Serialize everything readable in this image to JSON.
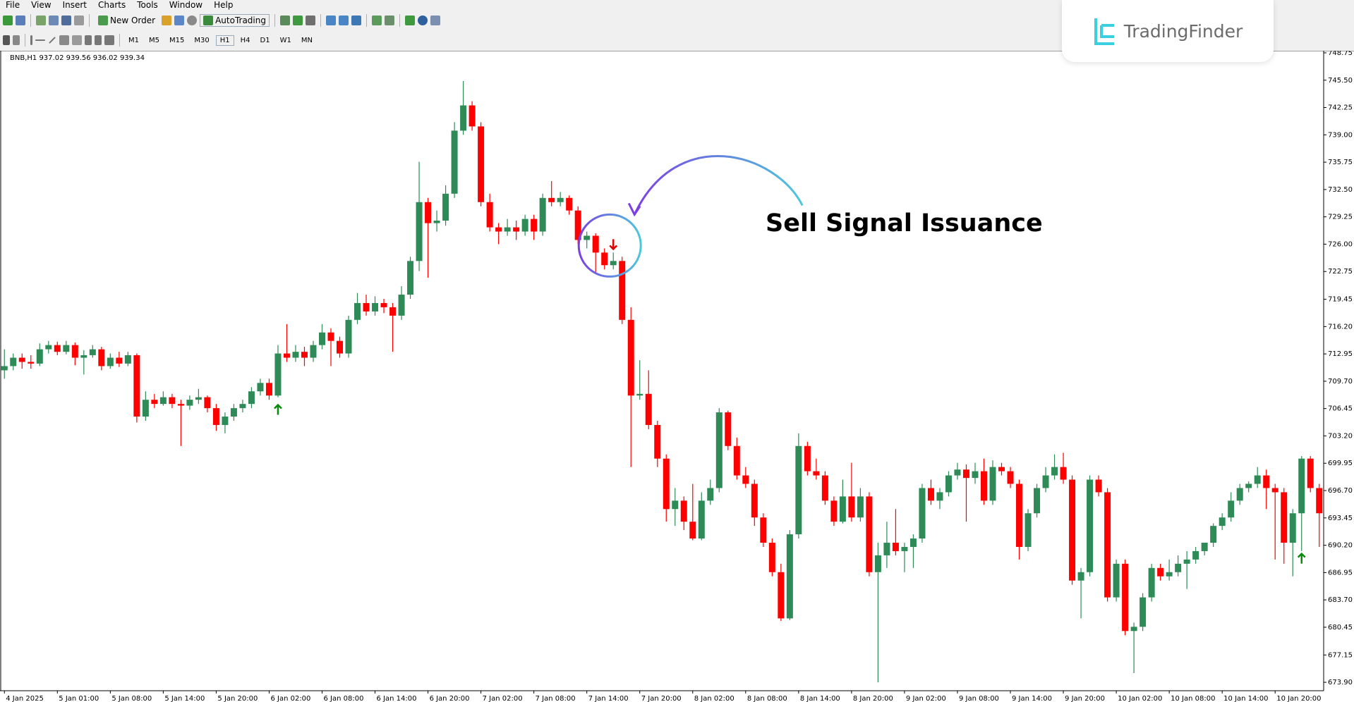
{
  "menu": [
    "File",
    "View",
    "Insert",
    "Charts",
    "Tools",
    "Window",
    "Help"
  ],
  "toolbar": {
    "new_order": "New Order",
    "autotrading": "AutoTrading",
    "timeframes": [
      "M1",
      "M5",
      "M15",
      "M30",
      "H1",
      "H4",
      "D1",
      "W1",
      "MN"
    ]
  },
  "logo": "TradingFinder",
  "chart_data": {
    "type": "candlestick",
    "title": "BNB,H1  937.02 939.56 936.02 939.34",
    "annotation": "Sell Signal Issuance",
    "up_color": "#2e8b57",
    "down_color": "#ff0000",
    "categories": [
      "4 Jan 2025",
      null,
      null,
      null,
      null,
      null,
      "5 Jan 01:00",
      null,
      null,
      null,
      null,
      null,
      "5 Jan 08:00",
      null,
      null,
      null,
      null,
      null,
      "5 Jan 14:00",
      null,
      null,
      null,
      null,
      null,
      "5 Jan 20:00",
      null,
      null,
      null,
      null,
      null,
      "6 Jan 02:00",
      null,
      null,
      null,
      null,
      null,
      "6 Jan 08:00",
      null,
      null,
      null,
      null,
      null,
      "6 Jan 14:00",
      null,
      null,
      null,
      null,
      null,
      "6 Jan 20:00",
      null,
      null,
      null,
      null,
      null,
      "7 Jan 02:00",
      null,
      null,
      null,
      null,
      null,
      "7 Jan 08:00",
      null,
      null,
      null,
      null,
      null,
      "7 Jan 14:00",
      null,
      null,
      null,
      null,
      null,
      "7 Jan 20:00",
      null,
      null,
      null,
      null,
      null,
      "8 Jan 02:00",
      null,
      null,
      null,
      null,
      null,
      "8 Jan 08:00",
      null,
      null,
      null,
      null,
      null,
      "8 Jan 14:00",
      null,
      null,
      null,
      null,
      null,
      "8 Jan 20:00",
      null,
      null,
      null,
      null,
      null,
      "9 Jan 02:00",
      null,
      null,
      null,
      null,
      null,
      "9 Jan 08:00",
      null,
      null,
      null,
      null,
      null,
      "9 Jan 14:00",
      null,
      null,
      null,
      null,
      null,
      "9 Jan 20:00",
      null,
      null,
      null,
      null,
      null,
      "10 Jan 02:00",
      null,
      null,
      null,
      null,
      null,
      "10 Jan 08:00",
      null,
      null,
      null,
      null,
      null,
      "10 Jan 14:00",
      null,
      null,
      null,
      null,
      null,
      "10 Jan 20:00",
      null,
      null,
      null,
      null,
      null
    ],
    "ohlc": [
      [
        711,
        713.5,
        710,
        711.5
      ],
      [
        711.5,
        713,
        711,
        712.5
      ],
      [
        712.5,
        713,
        711.2,
        712
      ],
      [
        712,
        712.8,
        711.2,
        711.8
      ],
      [
        711.8,
        714.2,
        711.5,
        713.5
      ],
      [
        713.5,
        714.5,
        713,
        714
      ],
      [
        714,
        714.4,
        712.8,
        713.2
      ],
      [
        713.2,
        714.5,
        712.9,
        714
      ],
      [
        714,
        714.3,
        711.6,
        712.5
      ],
      [
        712.5,
        713.4,
        710.5,
        712.8
      ],
      [
        712.8,
        714,
        712.5,
        713.5
      ],
      [
        713.5,
        713.8,
        711,
        711.5
      ],
      [
        711.5,
        713,
        711.2,
        712.5
      ],
      [
        712.5,
        713.2,
        711.4,
        711.8
      ],
      [
        711.8,
        713.2,
        711.5,
        712.8
      ],
      [
        712.8,
        713,
        704.8,
        705.5
      ],
      [
        705.5,
        708.5,
        705,
        707.5
      ],
      [
        707.5,
        708.2,
        706.5,
        707
      ],
      [
        707,
        708.5,
        706.8,
        707.8
      ],
      [
        707.8,
        708.2,
        706.5,
        707
      ],
      [
        707,
        707.5,
        702,
        706.8
      ],
      [
        706.8,
        708,
        706.3,
        707.5
      ],
      [
        707.5,
        708.8,
        707,
        707.8
      ],
      [
        707.8,
        708,
        706,
        706.5
      ],
      [
        706.5,
        707,
        703.8,
        704.5
      ],
      [
        704.5,
        706,
        703.5,
        705.5
      ],
      [
        705.5,
        707,
        705,
        706.5
      ],
      [
        706.5,
        707.5,
        706,
        707
      ],
      [
        707,
        709,
        706.5,
        708.5
      ],
      [
        708.5,
        710,
        708,
        709.5
      ],
      [
        709.5,
        710,
        707.5,
        708
      ],
      [
        708,
        714,
        707.8,
        713
      ],
      [
        713,
        716.5,
        712,
        712.5
      ],
      [
        712.5,
        714,
        712,
        713.2
      ],
      [
        713.2,
        713.8,
        711.5,
        712.5
      ],
      [
        712.5,
        714.5,
        712,
        714
      ],
      [
        714,
        716.5,
        713.5,
        715.5
      ],
      [
        715.5,
        716,
        711.5,
        714.5
      ],
      [
        714.5,
        715,
        712.5,
        713
      ],
      [
        713,
        717.5,
        712.5,
        717
      ],
      [
        717,
        720.2,
        716.5,
        719
      ],
      [
        719,
        720,
        717.5,
        718
      ],
      [
        718,
        719.8,
        717.5,
        719
      ],
      [
        719,
        719.5,
        717.8,
        718.5
      ],
      [
        718.5,
        719,
        713.2,
        717.5
      ],
      [
        717.5,
        721,
        717,
        720
      ],
      [
        720,
        724.5,
        719.5,
        724
      ],
      [
        724,
        735.8,
        722.8,
        731
      ],
      [
        731,
        731.5,
        722,
        728.5
      ],
      [
        728.5,
        730,
        727.5,
        728.8
      ],
      [
        728.8,
        733,
        728.2,
        732
      ],
      [
        732,
        740.5,
        731.5,
        739.5
      ],
      [
        739.5,
        745.4,
        739,
        742.5
      ],
      [
        742.5,
        743,
        739.5,
        740
      ],
      [
        740,
        740.5,
        730.5,
        731
      ],
      [
        731,
        732,
        727.5,
        728
      ],
      [
        728,
        728.5,
        726,
        727.5
      ],
      [
        727.5,
        729,
        727,
        728
      ],
      [
        728,
        728.8,
        726.5,
        727.5
      ],
      [
        727.5,
        729.5,
        727,
        729
      ],
      [
        729,
        729.5,
        726.5,
        727.5
      ],
      [
        727.5,
        732,
        727,
        731.5
      ],
      [
        731.5,
        733.5,
        730.5,
        731
      ],
      [
        731,
        732.2,
        730.5,
        731.5
      ],
      [
        731.5,
        731.8,
        729.5,
        730
      ],
      [
        730,
        730.5,
        726,
        726.5
      ],
      [
        726.5,
        727.5,
        725.5,
        727
      ],
      [
        727,
        727.3,
        722.5,
        725
      ],
      [
        725,
        725.5,
        723,
        723.5
      ],
      [
        723.5,
        725,
        723,
        724
      ],
      [
        724,
        724.5,
        716.5,
        717
      ],
      [
        717,
        718.5,
        699.5,
        708
      ],
      [
        708,
        712.2,
        707.5,
        708.2
      ],
      [
        708.2,
        711,
        704,
        704.5
      ],
      [
        704.5,
        705,
        699.5,
        700.5
      ],
      [
        700.5,
        701,
        693,
        694.5
      ],
      [
        694.5,
        697,
        692.5,
        695.5
      ],
      [
        695.5,
        696,
        692,
        693
      ],
      [
        693,
        697.5,
        690.8,
        691
      ],
      [
        691,
        696.5,
        690.8,
        695.5
      ],
      [
        695.5,
        698,
        695,
        697
      ],
      [
        697,
        706.5,
        696.5,
        706
      ],
      [
        706,
        706.2,
        701.5,
        702
      ],
      [
        702,
        703,
        698,
        698.5
      ],
      [
        698.5,
        699.5,
        697,
        697.5
      ],
      [
        697.5,
        698,
        692.5,
        693.5
      ],
      [
        693.5,
        694,
        690,
        690.5
      ],
      [
        690.5,
        691,
        686.5,
        687
      ],
      [
        687,
        688,
        681.2,
        681.5
      ],
      [
        681.5,
        692,
        681.3,
        691.5
      ],
      [
        691.5,
        703.5,
        691,
        702
      ],
      [
        702,
        702.5,
        698.5,
        699
      ],
      [
        699,
        700.5,
        698,
        698.5
      ],
      [
        698.5,
        699,
        695,
        695.5
      ],
      [
        695.5,
        696,
        692.5,
        693
      ],
      [
        693,
        698,
        692.8,
        696
      ],
      [
        696,
        700,
        693,
        693.5
      ],
      [
        693.5,
        697,
        693,
        696
      ],
      [
        696,
        696.5,
        686.5,
        687
      ],
      [
        687,
        690.5,
        673.9,
        689
      ],
      [
        689,
        693,
        687.5,
        690.5
      ],
      [
        690.5,
        694.5,
        689,
        689.5
      ],
      [
        689.5,
        690.5,
        687,
        690
      ],
      [
        690,
        691.5,
        687.5,
        691
      ],
      [
        691,
        697.5,
        690.5,
        697
      ],
      [
        697,
        698,
        695,
        695.5
      ],
      [
        695.5,
        697,
        694.5,
        696.5
      ],
      [
        696.5,
        699,
        696,
        698.5
      ],
      [
        698.5,
        700,
        698,
        699.2
      ],
      [
        699.2,
        699.8,
        693,
        698.2
      ],
      [
        698.2,
        700,
        697.5,
        699
      ],
      [
        699,
        700.5,
        695,
        695.5
      ],
      [
        695.5,
        700.3,
        695,
        699.5
      ],
      [
        699.5,
        700,
        698.5,
        699
      ],
      [
        699,
        699.5,
        697,
        697.5
      ],
      [
        697.5,
        698,
        688.5,
        690
      ],
      [
        690,
        694.5,
        689.5,
        694
      ],
      [
        694,
        697.5,
        693.5,
        697
      ],
      [
        697,
        699.5,
        696.5,
        698.5
      ],
      [
        698.5,
        701,
        698,
        699.5
      ],
      [
        699.5,
        701.2,
        697.5,
        698
      ],
      [
        698,
        698.5,
        685.5,
        686
      ],
      [
        686,
        687.5,
        681.5,
        687
      ],
      [
        687,
        698.5,
        686.5,
        698
      ],
      [
        698,
        698.5,
        696,
        696.5
      ],
      [
        696.5,
        697,
        683.5,
        684
      ],
      [
        684,
        688.5,
        683.5,
        688
      ],
      [
        688,
        688.5,
        679.5,
        680
      ],
      [
        680,
        681,
        675,
        680.5
      ],
      [
        680.5,
        684.5,
        680,
        684
      ],
      [
        684,
        688,
        683.5,
        687.5
      ],
      [
        687.5,
        688,
        686,
        686.5
      ],
      [
        686.5,
        688.5,
        686,
        687
      ],
      [
        687,
        689,
        686.5,
        688
      ],
      [
        688,
        689.5,
        685,
        688.5
      ],
      [
        688.5,
        690,
        688,
        689.5
      ],
      [
        689.5,
        690.5,
        689,
        690.5
      ],
      [
        690.5,
        692.8,
        690,
        692.5
      ],
      [
        692.5,
        694,
        692,
        693.5
      ],
      [
        693.5,
        696.5,
        693,
        695.5
      ],
      [
        695.5,
        697.5,
        695,
        697
      ],
      [
        697,
        697.8,
        696.5,
        697.5
      ],
      [
        697.5,
        699.5,
        697,
        698.5
      ],
      [
        698.5,
        699.2,
        694.5,
        697
      ],
      [
        697,
        697.5,
        688.5,
        696.5
      ],
      [
        696.5,
        697,
        688,
        690.5
      ],
      [
        690.5,
        694.5,
        686.5,
        694
      ],
      [
        694,
        700.8,
        689.5,
        700.5
      ],
      [
        700.5,
        700.8,
        696.5,
        697
      ],
      [
        697,
        697.5,
        690,
        694
      ]
    ],
    "signals": [
      {
        "candle": 31,
        "price": 706.3,
        "direction": "buy"
      },
      {
        "candle": 69,
        "price": 726,
        "direction": "sell"
      },
      {
        "candle": 147,
        "price": 688.6,
        "direction": "buy"
      }
    ],
    "ylim": [
      672.9,
      749.0
    ],
    "yticks": [
      {
        "value": 748.75,
        "label": "748.75"
      },
      {
        "value": 745.5,
        "label": "745.50"
      },
      {
        "value": 742.25,
        "label": "742.25"
      },
      {
        "value": 739.0,
        "label": "739.00"
      },
      {
        "value": 735.75,
        "label": "735.75"
      },
      {
        "value": 732.5,
        "label": "732.50"
      },
      {
        "value": 729.25,
        "label": "729.25"
      },
      {
        "value": 726.0,
        "label": "726.00"
      },
      {
        "value": 722.75,
        "label": "722.75"
      },
      {
        "value": 719.45,
        "label": "719.45"
      },
      {
        "value": 716.2,
        "label": "716.20"
      },
      {
        "value": 712.95,
        "label": "712.95"
      },
      {
        "value": 709.7,
        "label": "709.70"
      },
      {
        "value": 706.45,
        "label": "706.45"
      },
      {
        "value": 703.2,
        "label": "703.20"
      },
      {
        "value": 699.95,
        "label": "699.95"
      },
      {
        "value": 696.7,
        "label": "696.70"
      },
      {
        "value": 693.45,
        "label": "693.45"
      },
      {
        "value": 690.2,
        "label": "690.20"
      },
      {
        "value": 686.95,
        "label": "686.95"
      },
      {
        "value": 683.7,
        "label": "683.70"
      },
      {
        "value": 680.45,
        "label": "680.45"
      },
      {
        "value": 677.15,
        "label": "677.15"
      },
      {
        "value": 673.9,
        "label": "673.90"
      }
    ]
  }
}
